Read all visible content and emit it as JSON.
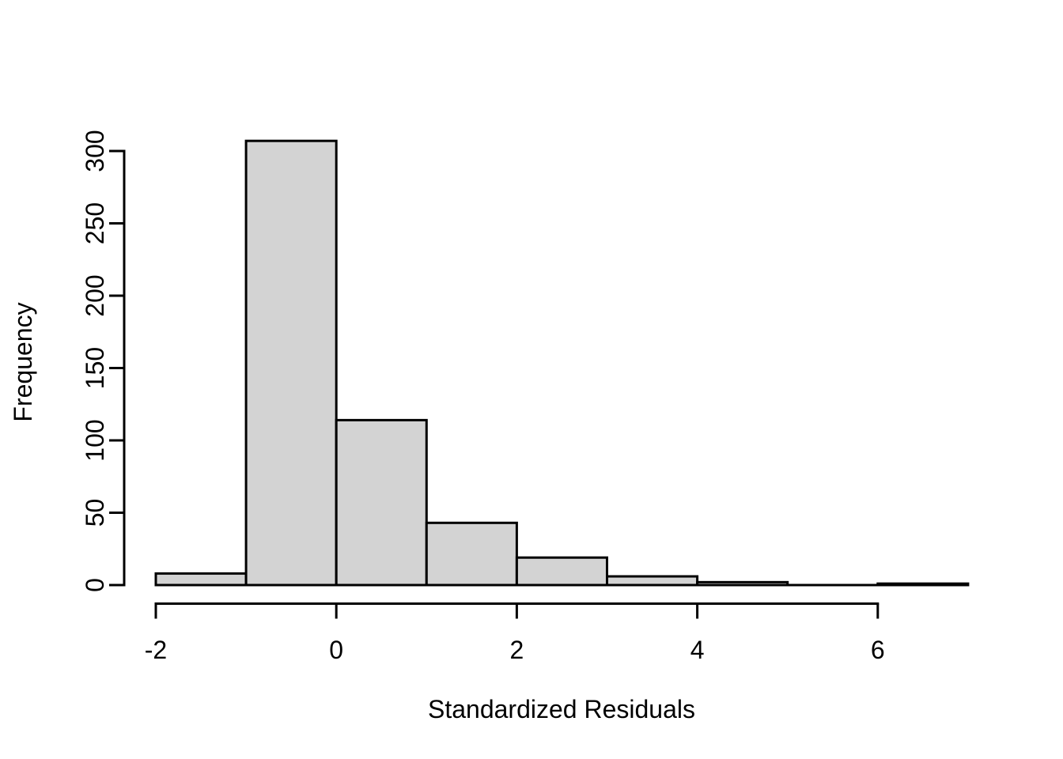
{
  "chart_data": {
    "type": "bar",
    "subtype": "histogram",
    "title": "",
    "xlabel": "Standardized Residuals",
    "ylabel": "Frequency",
    "bin_edges": [
      -2,
      -1,
      0,
      1,
      2,
      3,
      4,
      5,
      6,
      7
    ],
    "counts": [
      8,
      307,
      114,
      43,
      19,
      6,
      2,
      0,
      1
    ],
    "x_tick_values": [
      -2,
      0,
      2,
      4,
      6
    ],
    "x_tick_labels": [
      "-2",
      "0",
      "2",
      "4",
      "6"
    ],
    "y_tick_values": [
      0,
      50,
      100,
      150,
      200,
      250,
      300
    ],
    "y_tick_labels": [
      "0",
      "50",
      "100",
      "150",
      "200",
      "250",
      "300"
    ],
    "xlim": [
      -2,
      7
    ],
    "ylim": [
      0,
      300
    ],
    "grid": false,
    "legend": null,
    "colors": {
      "bar_fill": "#D3D3D3",
      "bar_stroke": "#000000",
      "axis": "#000000",
      "text": "#000000",
      "background": "#FFFFFF"
    }
  }
}
